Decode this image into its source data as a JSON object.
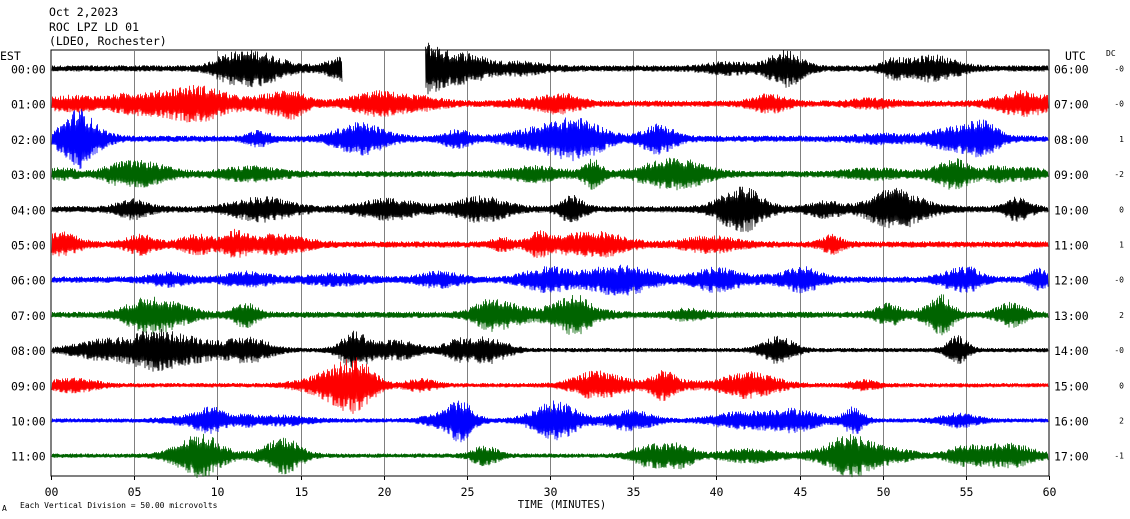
{
  "header": {
    "line1": "Oct 2,2023",
    "line2": "ROC LPZ LD 01",
    "line3": "(LDEO, Rochester)"
  },
  "left_axis_title": "EST",
  "right_axis_title": "UTC",
  "dc_label": "DC",
  "footer": {
    "x_axis_title": "TIME (MINUTES)",
    "scale_note": "Each Vertical Division =   50.00 microvolts",
    "corner_mark": "A"
  },
  "colors": {
    "black": "#000000",
    "red": "#ff0000",
    "blue": "#0000ff",
    "green": "#006400",
    "grid": "#808080"
  },
  "chart_data": {
    "type": "line",
    "title": "ROC LPZ LD 01",
    "xlabel": "TIME (MINUTES)",
    "xlim": [
      0,
      60
    ],
    "x_ticks": [
      "00",
      "05",
      "10",
      "15",
      "20",
      "25",
      "30",
      "35",
      "40",
      "45",
      "50",
      "55",
      "60"
    ],
    "vertical_division_microvolts": 50.0,
    "grid": "vertical lines every 5 minutes",
    "rows": [
      {
        "est": "00:00",
        "utc": "06:00",
        "dc": "-0",
        "color": "black",
        "gap_minutes": [
          17.5,
          22.5
        ]
      },
      {
        "est": "01:00",
        "utc": "07:00",
        "dc": "-0",
        "color": "red"
      },
      {
        "est": "02:00",
        "utc": "08:00",
        "dc": "1",
        "color": "blue"
      },
      {
        "est": "03:00",
        "utc": "09:00",
        "dc": "-2",
        "color": "green"
      },
      {
        "est": "04:00",
        "utc": "10:00",
        "dc": "0",
        "color": "black"
      },
      {
        "est": "05:00",
        "utc": "11:00",
        "dc": "1",
        "color": "red"
      },
      {
        "est": "06:00",
        "utc": "12:00",
        "dc": "-0",
        "color": "blue"
      },
      {
        "est": "07:00",
        "utc": "13:00",
        "dc": "2",
        "color": "green"
      },
      {
        "est": "08:00",
        "utc": "14:00",
        "dc": "-0",
        "color": "black"
      },
      {
        "est": "09:00",
        "utc": "15:00",
        "dc": "0",
        "color": "red"
      },
      {
        "est": "10:00",
        "utc": "16:00",
        "dc": "2",
        "color": "blue"
      },
      {
        "est": "11:00",
        "utc": "17:00",
        "dc": "-1",
        "color": "green"
      }
    ]
  }
}
